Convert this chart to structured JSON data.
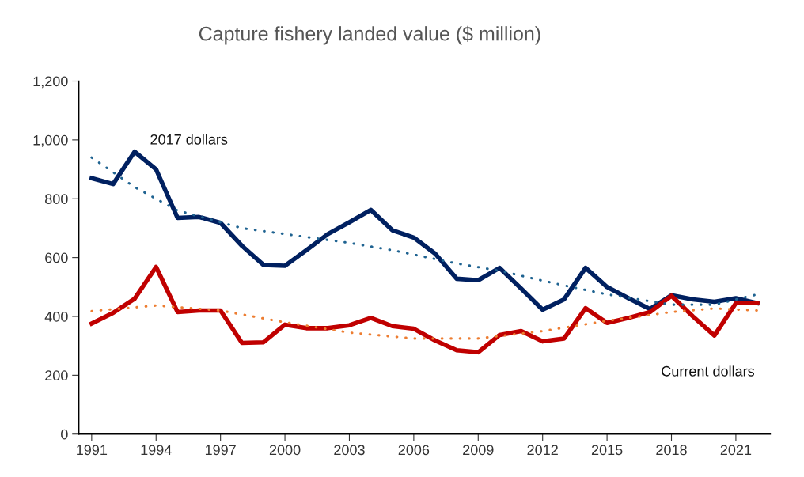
{
  "chart_data": {
    "type": "line",
    "title": "Capture fishery landed value ($ million)",
    "x": [
      1991,
      1992,
      1993,
      1994,
      1995,
      1996,
      1997,
      1998,
      1999,
      2000,
      2001,
      2002,
      2003,
      2004,
      2005,
      2006,
      2007,
      2008,
      2009,
      2010,
      2011,
      2012,
      2013,
      2014,
      2015,
      2016,
      2017,
      2018,
      2019,
      2020,
      2021,
      2022
    ],
    "series": [
      {
        "name": "2017 dollars",
        "color": "#002060",
        "line_style": "solid",
        "values": [
          870,
          850,
          960,
          900,
          735,
          738,
          718,
          640,
          575,
          572,
          625,
          680,
          720,
          762,
          693,
          668,
          613,
          528,
          523,
          565,
          495,
          423,
          458,
          565,
          500,
          462,
          425,
          472,
          458,
          450,
          462,
          445
        ]
      },
      {
        "name": "Current dollars",
        "color": "#c00000",
        "line_style": "solid",
        "values": [
          376,
          412,
          460,
          568,
          415,
          420,
          420,
          310,
          312,
          372,
          360,
          360,
          370,
          395,
          367,
          358,
          318,
          285,
          278,
          337,
          350,
          315,
          325,
          428,
          378,
          395,
          415,
          470,
          400,
          335,
          445,
          445
        ]
      },
      {
        "color": "#1f6391",
        "line_style": "dotted",
        "x": [
          1991,
          1993,
          1995,
          1998,
          2000,
          2003,
          2005,
          2008,
          2010,
          2013,
          2015,
          2018,
          2020,
          2022
        ],
        "values": [
          940,
          840,
          760,
          700,
          680,
          650,
          625,
          580,
          555,
          505,
          475,
          440,
          440,
          475
        ]
      },
      {
        "color": "#ed7d31",
        "line_style": "dotted",
        "x": [
          1991,
          1994,
          1997,
          2000,
          2003,
          2006,
          2009,
          2012,
          2015,
          2018,
          2020,
          2022
        ],
        "values": [
          418,
          437,
          420,
          380,
          345,
          325,
          325,
          350,
          385,
          415,
          427,
          420
        ]
      }
    ],
    "xlim": [
      1990.4,
      2022.6
    ],
    "xticks": [
      1991,
      1994,
      1997,
      2000,
      2003,
      2006,
      2009,
      2012,
      2015,
      2018,
      2021
    ],
    "ylim": [
      0,
      1200
    ],
    "yticks": [
      0,
      200,
      400,
      600,
      800,
      {
        "value": 1000,
        "label": "1,000"
      },
      {
        "value": 1200,
        "label": "1,200"
      }
    ],
    "grid": false,
    "legend": false,
    "marker": "none"
  }
}
